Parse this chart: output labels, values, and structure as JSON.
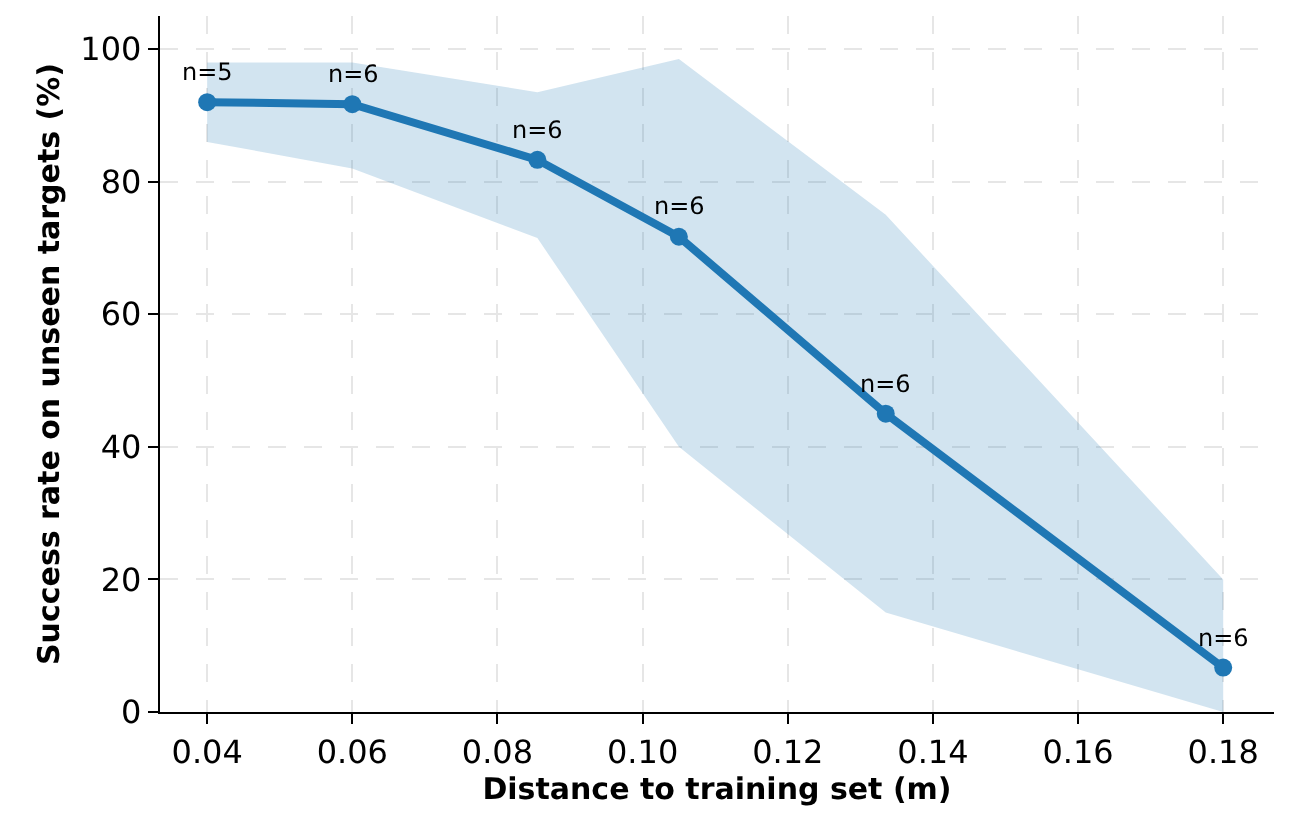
{
  "chart_data": {
    "type": "line",
    "xlabel": "Distance to training set (m)",
    "ylabel": "Success rate on unseen targets (%)",
    "x": [
      0.04,
      0.06,
      0.0855,
      0.105,
      0.1335,
      0.18
    ],
    "series": [
      {
        "color": "#1f77b4",
        "values": [
          92,
          91.7,
          83.3,
          71.7,
          45,
          6.7
        ],
        "lower": [
          86,
          82,
          71.5,
          40,
          15,
          0
        ],
        "upper": [
          98,
          98,
          93.5,
          98.5,
          75,
          20
        ]
      }
    ],
    "annotations": [
      {
        "text": "n=5",
        "x": 0.04,
        "y": 92
      },
      {
        "text": "n=6",
        "x": 0.06,
        "y": 91.7
      },
      {
        "text": "n=6",
        "x": 0.0855,
        "y": 83.3
      },
      {
        "text": "n=6",
        "x": 0.105,
        "y": 71.7
      },
      {
        "text": "n=6",
        "x": 0.1335,
        "y": 45
      },
      {
        "text": "n=6",
        "x": 0.18,
        "y": 6.7
      }
    ],
    "xlim": [
      0.0335,
      0.187
    ],
    "ylim": [
      0,
      105
    ],
    "xticks": [
      {
        "value": 0.04,
        "label": "0.04"
      },
      {
        "value": 0.06,
        "label": "0.06"
      },
      {
        "value": 0.08,
        "label": "0.08"
      },
      {
        "value": 0.1,
        "label": "0.10"
      },
      {
        "value": 0.12,
        "label": "0.12"
      },
      {
        "value": 0.14,
        "label": "0.14"
      },
      {
        "value": 0.16,
        "label": "0.16"
      },
      {
        "value": 0.18,
        "label": "0.18"
      }
    ],
    "yticks": [
      0,
      20,
      40,
      60,
      80,
      100
    ],
    "grid": true,
    "marker": "circle",
    "line_style": "solid"
  }
}
